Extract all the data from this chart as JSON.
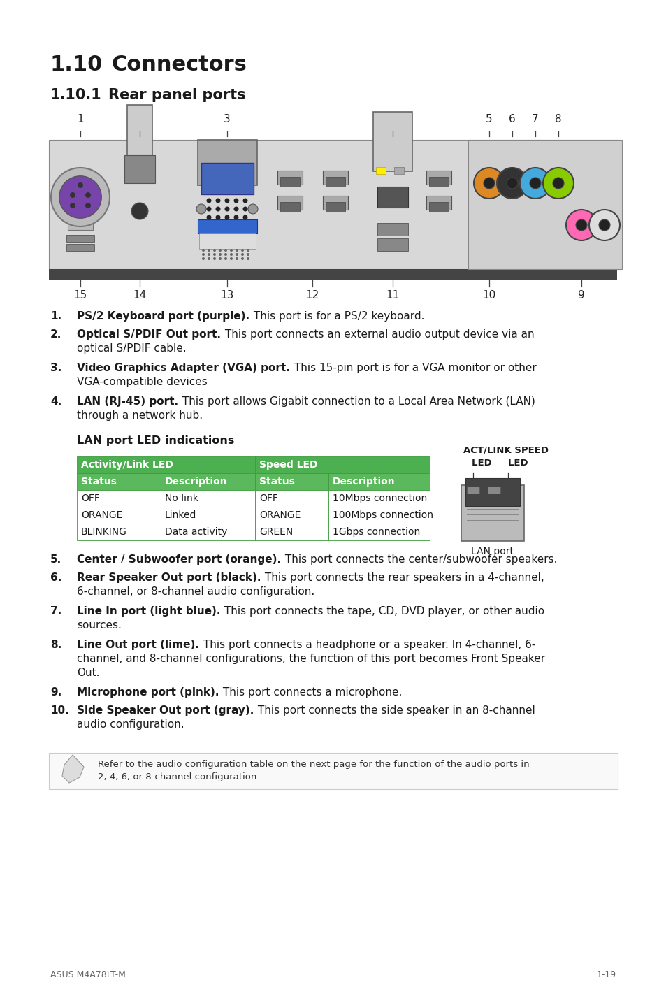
{
  "bg_color": "#ffffff",
  "title1": "1.10",
  "title1_text": "Connectors",
  "title2": "1.10.1",
  "title2_text": "Rear panel ports",
  "items_1_4": [
    {
      "num": "1.",
      "bold": "PS/2 Keyboard port (purple).",
      "line1": "PS/2 Keyboard port (purple). This port is for a PS/2 keyboard.",
      "line2": ""
    },
    {
      "num": "2.",
      "bold": "Optical S/PDIF Out port.",
      "line1": "Optical S/PDIF Out port. This port connects an external audio output device via an",
      "line2": "optical S/PDIF cable."
    },
    {
      "num": "3.",
      "bold": "Video Graphics Adapter (VGA) port.",
      "line1": "Video Graphics Adapter (VGA) port. This 15-pin port is for a VGA monitor or other",
      "line2": "VGA-compatible devices"
    },
    {
      "num": "4.",
      "bold": "LAN (RJ-45) port.",
      "line1": "LAN (RJ-45) port. This port allows Gigabit connection to a Local Area Network (LAN)",
      "line2": "through a network hub."
    }
  ],
  "lan_led_title": "LAN port LED indications",
  "table_header1": "Activity/Link LED",
  "table_header2": "Speed LED",
  "table_col_headers": [
    "Status",
    "Description",
    "Status",
    "Description"
  ],
  "table_rows": [
    [
      "OFF",
      "No link",
      "OFF",
      "10Mbps connection"
    ],
    [
      "ORANGE",
      "Linked",
      "ORANGE",
      "100Mbps connection"
    ],
    [
      "BLINKING",
      "Data activity",
      "GREEN",
      "1Gbps connection"
    ]
  ],
  "table_green_dark": "#3d9b3d",
  "table_green_light": "#5cb85c",
  "table_green_header": "#4caf50",
  "items_5_10": [
    {
      "num": "5.",
      "bold": "Center / Subwoofer port (orange).",
      "line1": "Center / Subwoofer port (orange). This port connects the center/subwoofer speakers.",
      "line2": ""
    },
    {
      "num": "6.",
      "bold": "Rear Speaker Out port (black).",
      "line1": "Rear Speaker Out port (black). This port connects the rear speakers in a 4-channel,",
      "line2": "6-channel, or 8-channel audio configuration."
    },
    {
      "num": "7.",
      "bold": "Line In port (light blue).",
      "line1": "Line In port (light blue). This port connects the tape, CD, DVD player, or other audio",
      "line2": "sources."
    },
    {
      "num": "8.",
      "bold": "Line Out port (lime).",
      "line1": "Line Out port (lime). This port connects a headphone or a speaker. In 4-channel, 6-",
      "line2a": "channel, and 8-channel configurations, the function of this port becomes Front Speaker",
      "line2": "Out."
    },
    {
      "num": "9.",
      "bold": "Microphone port (pink).",
      "line1": "Microphone port (pink). This port connects a microphone.",
      "line2": ""
    },
    {
      "num": "10.",
      "bold": "Side Speaker Out port (gray).",
      "line1": "Side Speaker Out port (gray). This port connects the side speaker in an 8-channel",
      "line2": "audio configuration."
    }
  ],
  "note_text1": "Refer to the audio configuration table on the next page for the function of the audio ports in",
  "note_text2": "2, 4, 6, or 8-channel configuration.",
  "footer_left": "ASUS M4A78LT-M",
  "footer_right": "1-19"
}
